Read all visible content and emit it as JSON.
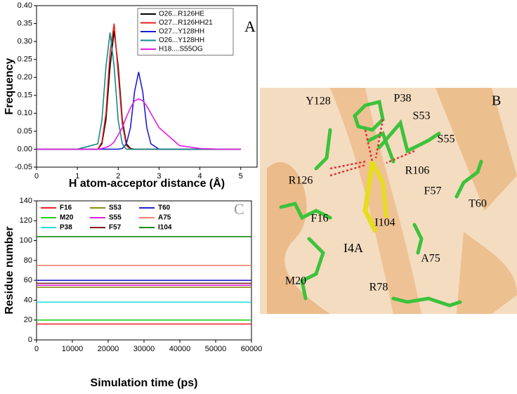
{
  "chart_data": [
    {
      "type": "line",
      "annotation": "A",
      "ylabel": "Frequency",
      "xlabel": "H atom-acceptor distance (Å)",
      "x": [
        0,
        0.5,
        1,
        1.5,
        1.6,
        1.7,
        1.8,
        1.9,
        2,
        2.1,
        2.2,
        2.3,
        2.4,
        2.5,
        2.6,
        2.7,
        2.8,
        3,
        3.5,
        4,
        4.5,
        5
      ],
      "xlim": [
        0,
        5.4
      ],
      "xticks": [
        0,
        1,
        2,
        3,
        4,
        5
      ],
      "ylim": [
        -0.05,
        0.4
      ],
      "yticks": [
        {
          "value": -0.05,
          "label": "-0.05"
        },
        {
          "value": 0,
          "label": "0.00"
        },
        {
          "value": 0.05,
          "label": "0.05"
        },
        {
          "value": 0.1,
          "label": "0.10"
        },
        {
          "value": 0.15,
          "label": "0.15"
        },
        {
          "value": 0.2,
          "label": "0.20"
        },
        {
          "value": 0.25,
          "label": "0.25"
        },
        {
          "value": 0.3,
          "label": "0.30"
        },
        {
          "value": 0.35,
          "label": "0.35"
        },
        {
          "value": 0.4,
          "label": "0.40"
        }
      ],
      "legend": "top-right",
      "series": [
        {
          "name": "O26...R126HE",
          "color": "#000000",
          "values": [
            0,
            0,
            0,
            0,
            0.015,
            0.082,
            0.23,
            0.33,
            0.23,
            0.082,
            0.015,
            0.002,
            0,
            0,
            0,
            0,
            0,
            0,
            0,
            0,
            0,
            0
          ]
        },
        {
          "name": "O27...R126HH21",
          "color": "#e8201c",
          "values": [
            0,
            0,
            0,
            0,
            0.02,
            0.1,
            0.27,
            0.35,
            0.21,
            0.07,
            0.01,
            0,
            0,
            0,
            0,
            0,
            0,
            0,
            0,
            0,
            0,
            0
          ]
        },
        {
          "name": "O27...Y128HH",
          "color": "#1d1dd0",
          "values": [
            0,
            0,
            0,
            0,
            0,
            0,
            0,
            0,
            0,
            0.002,
            0.015,
            0.06,
            0.16,
            0.215,
            0.16,
            0.06,
            0.015,
            0,
            0,
            0,
            0,
            0
          ]
        },
        {
          "name": "O26...Y128HH",
          "color": "#138a8a",
          "values": [
            0,
            0,
            0,
            0.015,
            0.08,
            0.23,
            0.325,
            0.23,
            0.08,
            0.015,
            0,
            0,
            0,
            0,
            0,
            0,
            0,
            0,
            0,
            0,
            0,
            0
          ]
        },
        {
          "name": "H18....S55OG",
          "color": "#e020e0",
          "values": [
            0,
            0,
            0,
            0,
            0.002,
            0.005,
            0.01,
            0.02,
            0.04,
            0.06,
            0.09,
            0.115,
            0.135,
            0.14,
            0.135,
            0.12,
            0.1,
            0.06,
            0.01,
            0.002,
            0,
            0
          ]
        }
      ]
    },
    {
      "type": "line",
      "annotation": "C",
      "ylabel": "Residue number",
      "xlabel": "Simulation time (ps)",
      "x": [
        0,
        60000
      ],
      "xlim": [
        0,
        60000
      ],
      "xticks": [
        0,
        10000,
        20000,
        30000,
        40000,
        50000,
        60000
      ],
      "ylim": [
        0,
        140
      ],
      "yticks": [
        0,
        20,
        40,
        60,
        80,
        100,
        120,
        140
      ],
      "legend": "top-left",
      "series": [
        {
          "name": "F16",
          "color": "#ee2222",
          "values": [
            16,
            16
          ]
        },
        {
          "name": "S53",
          "color": "#8a8a10",
          "values": [
            53,
            53
          ]
        },
        {
          "name": "T60",
          "color": "#2222cc",
          "values": [
            60,
            60
          ]
        },
        {
          "name": "M20",
          "color": "#22cc22",
          "values": [
            20,
            20
          ]
        },
        {
          "name": "S55",
          "color": "#dd22dd",
          "values": [
            55,
            55
          ]
        },
        {
          "name": "A75",
          "color": "#f08070",
          "values": [
            75,
            75
          ]
        },
        {
          "name": "P38",
          "color": "#22dddd",
          "values": [
            38,
            38
          ]
        },
        {
          "name": "F57",
          "color": "#7a1a1a",
          "values": [
            57,
            57
          ]
        },
        {
          "name": "I104",
          "color": "#118811",
          "values": [
            104,
            104
          ]
        }
      ]
    }
  ],
  "panel_b": {
    "label": "B",
    "residue_labels": [
      "Y128",
      "P38",
      "S53",
      "S55",
      "R106",
      "R126",
      "F57",
      "T60",
      "F16",
      "I104",
      "I4A",
      "A75",
      "M20",
      "R78"
    ]
  }
}
